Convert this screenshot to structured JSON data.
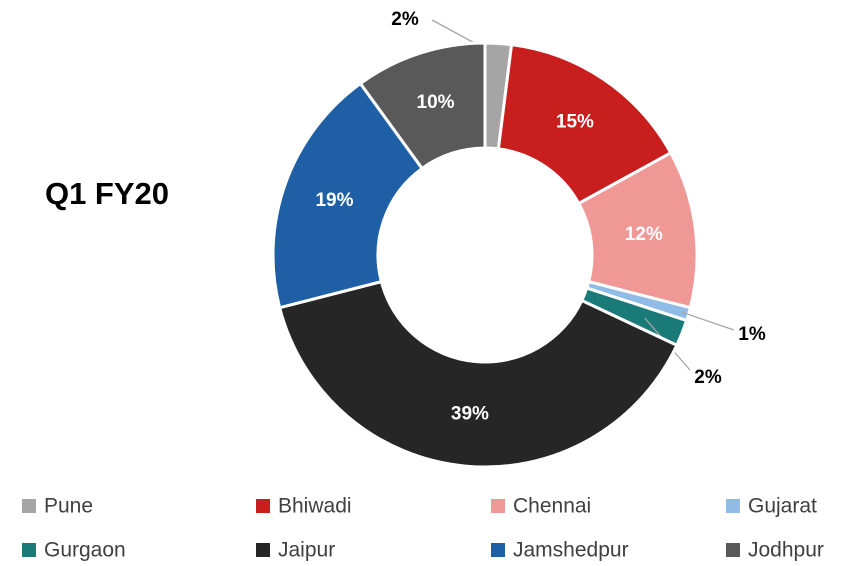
{
  "chart_data": {
    "type": "donut",
    "title": "Q1 FY20",
    "categories": [
      "Pune",
      "Bhiwadi",
      "Chennai",
      "Gujarat",
      "Gurgaon",
      "Jaipur",
      "Jamshedpur",
      "Jodhpur"
    ],
    "values": [
      2,
      15,
      12,
      1,
      2,
      39,
      19,
      10
    ],
    "value_labels": [
      "2%",
      "15%",
      "12%",
      "1%",
      "2%",
      "39%",
      "19%",
      "10%"
    ],
    "colors": [
      "#a5a5a5",
      "#c81e1e",
      "#f09896",
      "#8fbbe6",
      "#1a7a78",
      "#262626",
      "#1f5fa6",
      "#595959"
    ],
    "legend": "bottom"
  }
}
